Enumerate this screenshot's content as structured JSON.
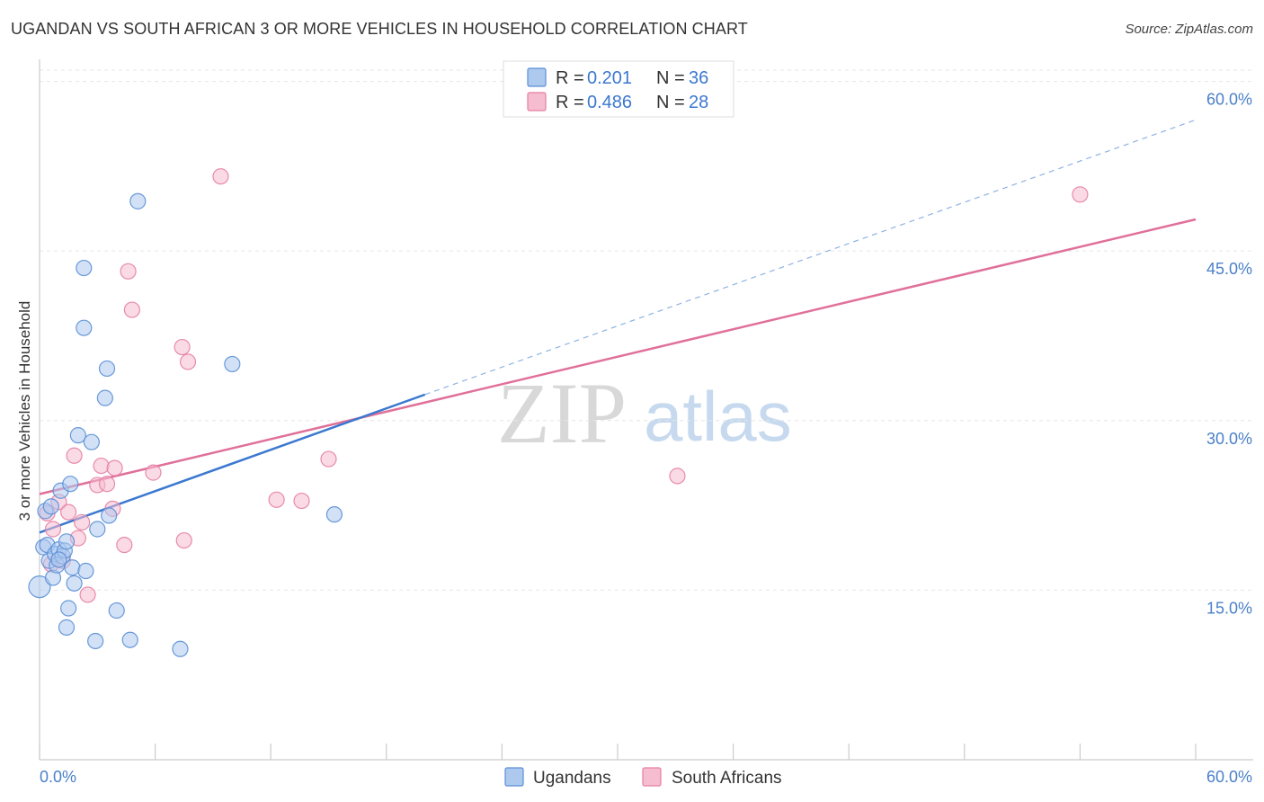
{
  "header": {
    "title": "UGANDAN VS SOUTH AFRICAN 3 OR MORE VEHICLES IN HOUSEHOLD CORRELATION CHART",
    "source": "Source: ZipAtlas.com"
  },
  "watermark": {
    "zip": "ZIP",
    "atlas": "atlas"
  },
  "colors": {
    "ugandans_fill": "#adc9ee",
    "ugandans_stroke": "#5a8fd6",
    "ugandans_line": "#3b78d0",
    "south_africans_fill": "#f6bcd0",
    "south_africans_stroke": "#e57fa3",
    "south_africans_line": "#e0709a",
    "tick_text": "#4a80c8",
    "grid": "#e6e6e6"
  },
  "legend": {
    "rows": [
      {
        "r_label": "R =",
        "r_value": "0.201",
        "n_label": "N =",
        "n_value": "36"
      },
      {
        "r_label": "R =",
        "r_value": "0.486",
        "n_label": "N =",
        "n_value": "28"
      }
    ]
  },
  "chart_data": {
    "type": "scatter",
    "title": "UGANDAN VS SOUTH AFRICAN 3 OR MORE VEHICLES IN HOUSEHOLD CORRELATION CHART",
    "xlabel": "",
    "ylabel": "3 or more Vehicles in Household",
    "xlim": [
      0,
      60
    ],
    "ylim": [
      0,
      61
    ],
    "x_tick_labels": [
      "0.0%",
      "60.0%"
    ],
    "y_ticks": [
      15,
      30,
      45,
      60
    ],
    "y_tick_labels": [
      "15.0%",
      "30.0%",
      "45.0%",
      "60.0%"
    ],
    "grid": true,
    "legend_position": "bottom",
    "series": [
      {
        "name": "Ugandans",
        "R": 0.201,
        "N": 36,
        "trend": {
          "x0": 0,
          "y0": 20.1,
          "x1": 20,
          "y1": 32.3,
          "dashed_x1": 60,
          "dashed_y1": 56.6
        },
        "points": [
          [
            0.0,
            15.3
          ],
          [
            0.2,
            18.8
          ],
          [
            0.3,
            22.0
          ],
          [
            0.4,
            19.0
          ],
          [
            0.5,
            17.6
          ],
          [
            0.6,
            22.4
          ],
          [
            0.7,
            16.1
          ],
          [
            0.8,
            18.2
          ],
          [
            0.9,
            17.2
          ],
          [
            1.0,
            18.6
          ],
          [
            1.1,
            23.8
          ],
          [
            1.2,
            18.0
          ],
          [
            1.3,
            18.5
          ],
          [
            1.4,
            19.3
          ],
          [
            1.4,
            11.7
          ],
          [
            1.5,
            13.4
          ],
          [
            1.6,
            24.4
          ],
          [
            1.7,
            17.0
          ],
          [
            1.8,
            15.6
          ],
          [
            2.0,
            28.7
          ],
          [
            2.3,
            43.5
          ],
          [
            2.3,
            38.2
          ],
          [
            2.4,
            16.7
          ],
          [
            2.7,
            28.1
          ],
          [
            2.9,
            10.5
          ],
          [
            3.0,
            20.4
          ],
          [
            3.4,
            32.0
          ],
          [
            3.5,
            34.6
          ],
          [
            3.6,
            21.6
          ],
          [
            4.0,
            13.2
          ],
          [
            4.7,
            10.6
          ],
          [
            5.1,
            49.4
          ],
          [
            7.3,
            9.8
          ],
          [
            10.0,
            35.0
          ],
          [
            15.3,
            21.7
          ],
          [
            1.0,
            17.7
          ]
        ]
      },
      {
        "name": "South Africans",
        "R": 0.486,
        "N": 28,
        "trend": {
          "x0": 0,
          "y0": 23.5,
          "x1": 60,
          "y1": 47.8
        },
        "points": [
          [
            0.4,
            21.8
          ],
          [
            0.6,
            17.3
          ],
          [
            0.7,
            20.4
          ],
          [
            1.0,
            22.8
          ],
          [
            1.2,
            17.6
          ],
          [
            1.5,
            21.9
          ],
          [
            1.8,
            26.9
          ],
          [
            2.0,
            19.6
          ],
          [
            2.2,
            21.0
          ],
          [
            2.5,
            14.6
          ],
          [
            3.0,
            24.3
          ],
          [
            3.2,
            26.0
          ],
          [
            3.5,
            24.4
          ],
          [
            3.8,
            22.2
          ],
          [
            3.9,
            25.8
          ],
          [
            4.4,
            19.0
          ],
          [
            4.6,
            43.2
          ],
          [
            4.8,
            39.8
          ],
          [
            5.9,
            25.4
          ],
          [
            7.4,
            36.5
          ],
          [
            7.5,
            19.4
          ],
          [
            7.7,
            35.2
          ],
          [
            9.4,
            51.6
          ],
          [
            12.3,
            23.0
          ],
          [
            13.6,
            22.9
          ],
          [
            15.0,
            26.6
          ],
          [
            33.1,
            25.1
          ],
          [
            54.0,
            50.0
          ]
        ]
      }
    ]
  },
  "bottom_legend": {
    "items": [
      {
        "label": "Ugandans"
      },
      {
        "label": "South Africans"
      }
    ]
  }
}
